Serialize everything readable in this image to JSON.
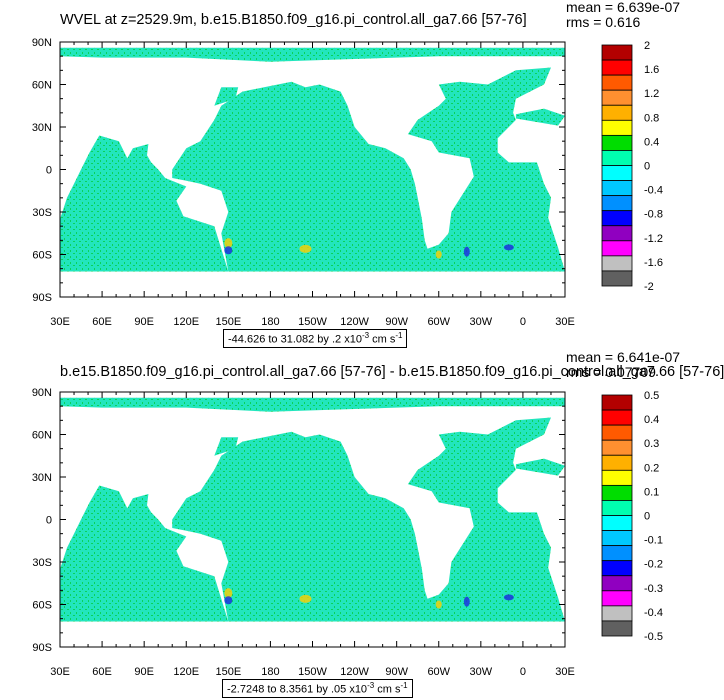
{
  "colors": {
    "land": "#ffffff",
    "ocean_base": "#22e6bd",
    "ocean_alt": "#0ad25a",
    "positive_patch": "#ffd000",
    "negative_patch": "#1c28e0"
  },
  "panels": [
    {
      "title": "WVEL at z=2529.9m, b.e15.B1850.f09_g16.pi_control.all_ga7.66 [57-76]",
      "mean_text": "mean = 6.639e-07",
      "rms_text": "rms = 0.616",
      "range_pre": "-44.626 to 31.082 by .2 x10",
      "range_exp": "-3",
      "range_unit": " cm s",
      "range_unit_exp": "-1"
    },
    {
      "title": "b.e15.B1850.f09_g16.pi_control.all_ga7.66 [57-76] - b.e15.B1850.f09_g16.pi_control.all_ga7.66 [57-76]",
      "mean_text": "mean = 6.641e-07",
      "rms_text": "rms = 0.07709",
      "range_pre": "-2.7248 to 8.3561 by .05 x10",
      "range_exp": "-3",
      "range_unit": " cm s",
      "range_unit_exp": "-1"
    }
  ],
  "chart_data": [
    {
      "type": "heatmap",
      "title": "WVEL at z=2529.9m, b.e15.B1850.f09_g16.pi_control.all_ga7.66 [57-76]",
      "x_ticks": [
        "30E",
        "60E",
        "90E",
        "120E",
        "150E",
        "180",
        "150W",
        "120W",
        "90W",
        "60W",
        "30W",
        "0",
        "30E"
      ],
      "y_ticks": [
        "90N",
        "60N",
        "30N",
        "0",
        "30S",
        "60S",
        "90S"
      ],
      "xlim_deg_east": [
        30,
        390
      ],
      "ylim_deg_north": [
        -90,
        90
      ],
      "colorbar_labels": [
        "2",
        "1.6",
        "1.2",
        "0.8",
        "0.4",
        "0",
        "-0.4",
        "-0.8",
        "-1.2",
        "-1.6",
        "-2"
      ],
      "colorbar_colors": [
        "#b30000",
        "#ff0000",
        "#ff5a00",
        "#ff9030",
        "#ffb000",
        "#ffff00",
        "#00dd00",
        "#00ffb0",
        "#00ffff",
        "#00c8ff",
        "#0090ff",
        "#0000ff",
        "#9000c0",
        "#ff00ff",
        "#c0c0c0",
        "#606060"
      ],
      "stats": {
        "mean": "6.639e-07",
        "rms": "0.616"
      }
    },
    {
      "type": "heatmap",
      "title": "b.e15.B1850.f09_g16.pi_control.all_ga7.66 [57-76] - b.e15.B1850.f09_g16.pi_control.all_ga7.66 [57-76]",
      "x_ticks": [
        "30E",
        "60E",
        "90E",
        "120E",
        "150E",
        "180",
        "150W",
        "120W",
        "90W",
        "60W",
        "30W",
        "0",
        "30E"
      ],
      "y_ticks": [
        "90N",
        "60N",
        "30N",
        "0",
        "30S",
        "60S",
        "90S"
      ],
      "xlim_deg_east": [
        30,
        390
      ],
      "ylim_deg_north": [
        -90,
        90
      ],
      "colorbar_labels": [
        "0.5",
        "0.4",
        "0.3",
        "0.2",
        "0.1",
        "0",
        "-0.1",
        "-0.2",
        "-0.3",
        "-0.4",
        "-0.5"
      ],
      "colorbar_colors": [
        "#b30000",
        "#ff0000",
        "#ff5a00",
        "#ff9030",
        "#ffb000",
        "#ffff00",
        "#00dd00",
        "#00ffb0",
        "#00ffff",
        "#00c8ff",
        "#0090ff",
        "#0000ff",
        "#9000c0",
        "#ff00ff",
        "#c0c0c0",
        "#606060"
      ],
      "stats": {
        "mean": "6.641e-07",
        "rms": "0.07709"
      }
    }
  ]
}
